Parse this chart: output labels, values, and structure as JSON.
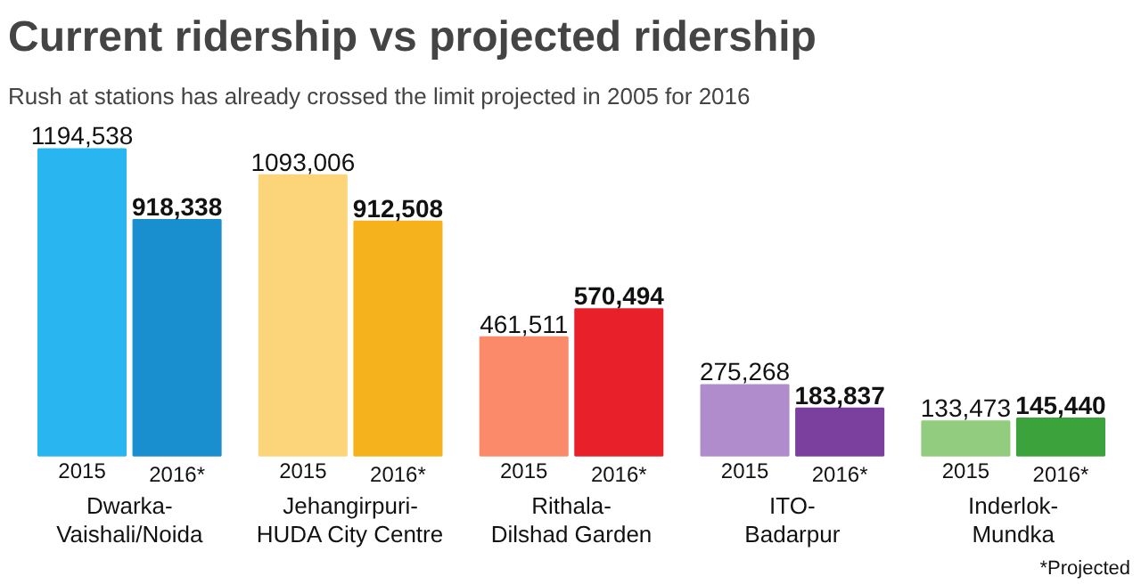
{
  "chart_data": {
    "type": "bar",
    "title": "Current ridership vs projected ridership",
    "subtitle": "Rush at stations has already crossed the limit projected in 2005 for 2016",
    "categories": [
      "Dwarka-Vaishali/Noida",
      "Jehangirpuri-HUDA City Centre",
      "Rithala-Dilshad Garden",
      "ITO-Badarpur",
      "Inderlok-Mundka"
    ],
    "series": [
      {
        "name": "2015",
        "colors": [
          "#29b6f0",
          "#fcd57a",
          "#fa8a6a",
          "#b08ccc",
          "#92cc7e"
        ],
        "values": [
          1194538,
          1093006,
          461511,
          275268,
          133473
        ],
        "value_labels": [
          "1194,538",
          "1093,006",
          "461,511",
          "275,268",
          "133,473"
        ]
      },
      {
        "name": "2016*",
        "colors": [
          "#1a8fd0",
          "#f5b21c",
          "#e8202a",
          "#7b3f9e",
          "#3ca33c"
        ],
        "values": [
          918338,
          912508,
          570494,
          183837,
          145440
        ],
        "value_labels": [
          "918,338",
          "912,508",
          "570,494",
          "183,837",
          "145,440"
        ]
      }
    ],
    "annotations": [
      "*Projected"
    ],
    "grid": false
  }
}
